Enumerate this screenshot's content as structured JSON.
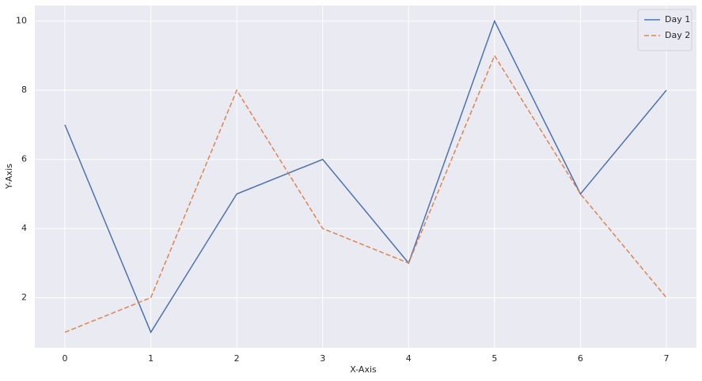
{
  "chart_data": {
    "type": "line",
    "xlabel": "X-Axis",
    "ylabel": "Y-Axis",
    "x": [
      0,
      1,
      2,
      3,
      4,
      5,
      6,
      7
    ],
    "series": [
      {
        "name": "Day 1",
        "color": "#4c72b0",
        "linestyle": "solid",
        "values": [
          7,
          1,
          5,
          6,
          3,
          10,
          5,
          8
        ]
      },
      {
        "name": "Day 2",
        "color": "#dd8452",
        "linestyle": "dashed",
        "values": [
          1,
          2,
          8,
          4,
          3,
          9,
          5,
          2
        ]
      }
    ],
    "xlim": [
      -0.35,
      7.35
    ],
    "ylim": [
      0.55,
      10.45
    ],
    "xticks": [
      0,
      1,
      2,
      3,
      4,
      5,
      6,
      7
    ],
    "yticks": [
      2,
      4,
      6,
      8,
      10
    ],
    "grid": true,
    "legend": "upper right"
  }
}
